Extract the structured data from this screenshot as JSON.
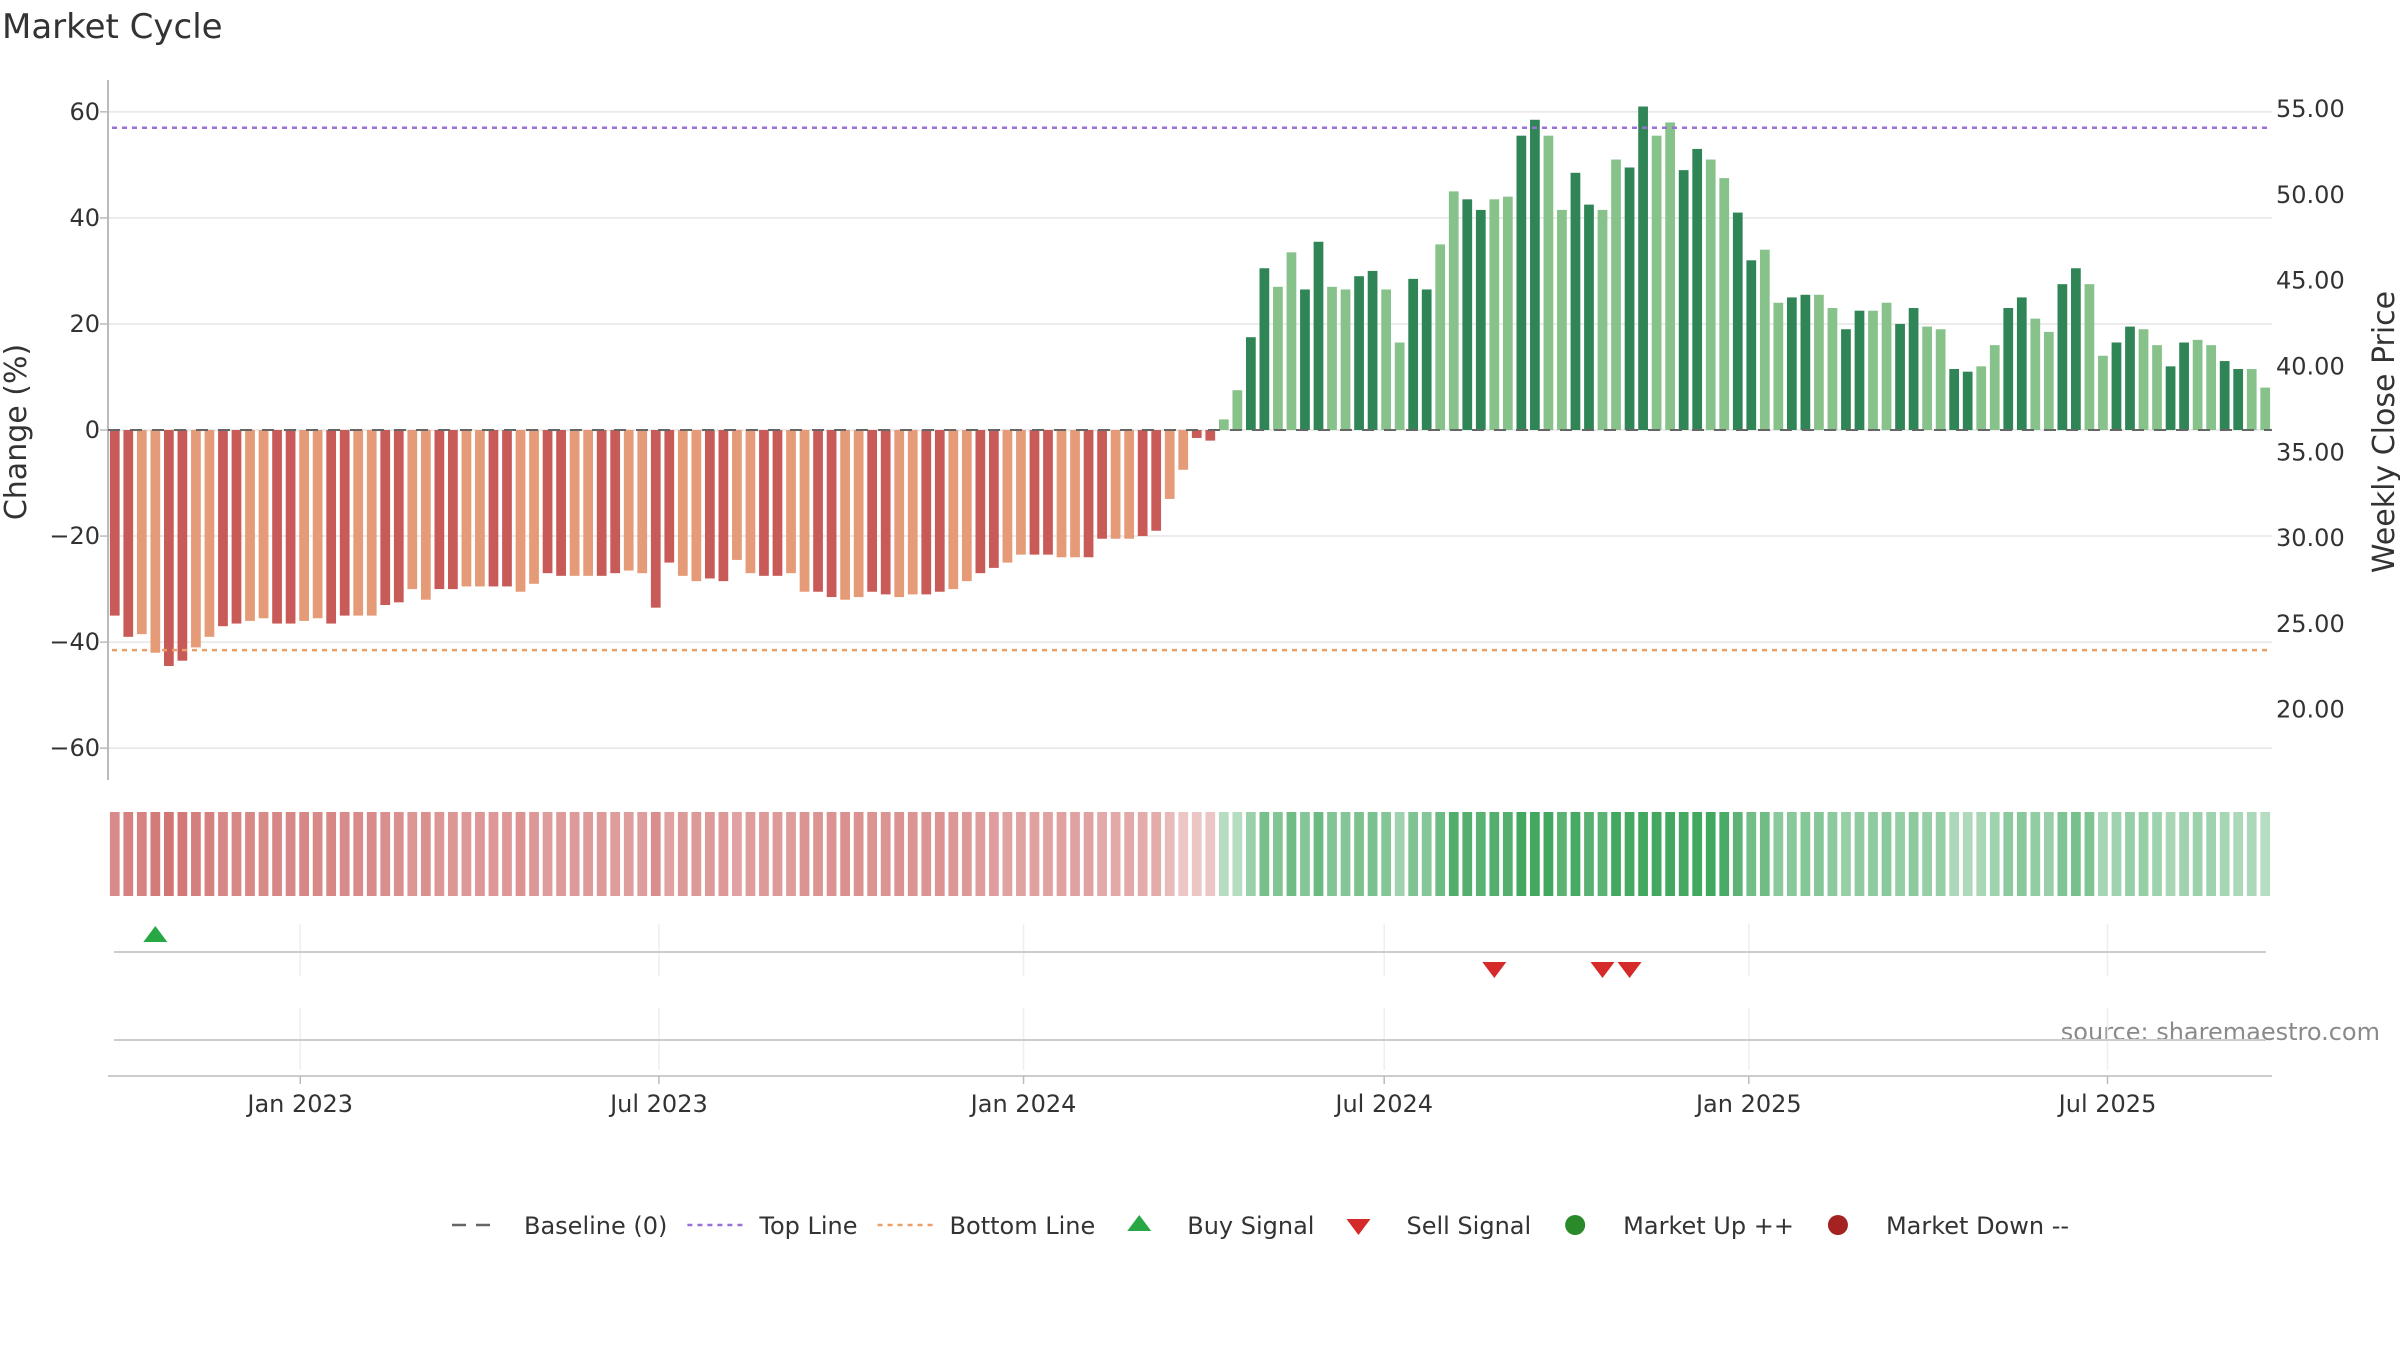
{
  "chart_data": {
    "type": "bar",
    "title": "Market Cycle",
    "ylabel": "Change (%)",
    "y2label": "Weekly Close Price",
    "ylim": [
      -66,
      66
    ],
    "y2lim": [
      15.9,
      56.7
    ],
    "yticks": [
      "60",
      "40",
      "20",
      "0",
      "−20",
      "−40",
      "−60"
    ],
    "ytick_values": [
      60,
      40,
      20,
      0,
      -20,
      -40,
      -60
    ],
    "y2ticks": [
      "55.00",
      "50.00",
      "45.00",
      "40.00",
      "35.00",
      "30.00",
      "25.00",
      "20.00"
    ],
    "y2tick_values": [
      55,
      50,
      45,
      40,
      35,
      30,
      25,
      20
    ],
    "x_start": "2022-09-26",
    "x_end": "2025-09-22",
    "xticks": [
      "Jan 2023",
      "Jul 2023",
      "Jan 2024",
      "Jul 2024",
      "Jan 2025",
      "Jul 2025"
    ],
    "xtick_dates": [
      "2023-01-01",
      "2023-07-01",
      "2024-01-01",
      "2024-07-01",
      "2025-01-01",
      "2025-07-01"
    ],
    "top_line": 57,
    "bottom_line": -41.5,
    "baseline": 0,
    "values": [
      -35,
      -39,
      -38.5,
      -42,
      -44.5,
      -43.5,
      -41,
      -39,
      -37,
      -36.5,
      -36,
      -35.5,
      -36.5,
      -36.5,
      -36,
      -35.5,
      -36.5,
      -35,
      -35,
      -35,
      -33,
      -32.5,
      -30,
      -32,
      -30,
      -30,
      -29.5,
      -29.5,
      -29.5,
      -29.5,
      -30.5,
      -29,
      -27,
      -27.5,
      -27.5,
      -27.5,
      -27.5,
      -27,
      -26.5,
      -27,
      -33.5,
      -25,
      -27.5,
      -28.5,
      -28,
      -28.5,
      -24.5,
      -27,
      -27.5,
      -27.5,
      -27,
      -30.5,
      -30.5,
      -31.5,
      -32,
      -31.5,
      -30.5,
      -31,
      -31.5,
      -31,
      -31,
      -30.5,
      -30,
      -28.5,
      -27,
      -26,
      -25,
      -23.5,
      -23.5,
      -23.5,
      -24,
      -24,
      -24,
      -20.5,
      -20.5,
      -20.5,
      -20,
      -19,
      -13,
      -7.5,
      -1.5,
      -2,
      2,
      7.5,
      17.5,
      30.5,
      27,
      33.5,
      26.5,
      35.5,
      27,
      26.5,
      29,
      30,
      26.5,
      16.5,
      28.5,
      26.5,
      35,
      45,
      43.5,
      41.5,
      43.5,
      44,
      55.5,
      58.5,
      55.5,
      41.5,
      48.5,
      42.5,
      41.5,
      51,
      49.5,
      61,
      55.5,
      58,
      49,
      53,
      51,
      47.5,
      41,
      32,
      34,
      24,
      25,
      25.5,
      25.5,
      23,
      19,
      22.5,
      22.5,
      24,
      20,
      23,
      19.5,
      19,
      11.5,
      11,
      12,
      16,
      23,
      25,
      21,
      18.5,
      27.5,
      30.5,
      27.5,
      14,
      16.5,
      19.5,
      19,
      16,
      12,
      16.5,
      17,
      16,
      13,
      11.5,
      11.5,
      8
    ],
    "buy_signals": [
      3
    ],
    "sell_signals": [
      102,
      110,
      112
    ],
    "colors": {
      "down_strong": "#c85a58",
      "down_weak": "#e59a78",
      "up_strong": "#2f8555",
      "up_weak": "#86c28a",
      "top_line": "#9a70d6",
      "bottom_line": "#e8a068",
      "buy": "#28a745",
      "sell": "#d42a2a",
      "market_up": "#2a8a2a",
      "market_down": "#a52222",
      "baseline": "#666666"
    },
    "legend": [
      {
        "key": "baseline",
        "label": "Baseline (0)"
      },
      {
        "key": "top",
        "label": "Top Line"
      },
      {
        "key": "bottom",
        "label": "Bottom Line"
      },
      {
        "key": "buy",
        "label": "Buy Signal"
      },
      {
        "key": "sell",
        "label": "Sell Signal"
      },
      {
        "key": "up",
        "label": "Market Up ++"
      },
      {
        "key": "down",
        "label": "Market Down --"
      }
    ],
    "legend_position": "bottom",
    "grid": true,
    "source": "source: sharemaestro.com"
  }
}
